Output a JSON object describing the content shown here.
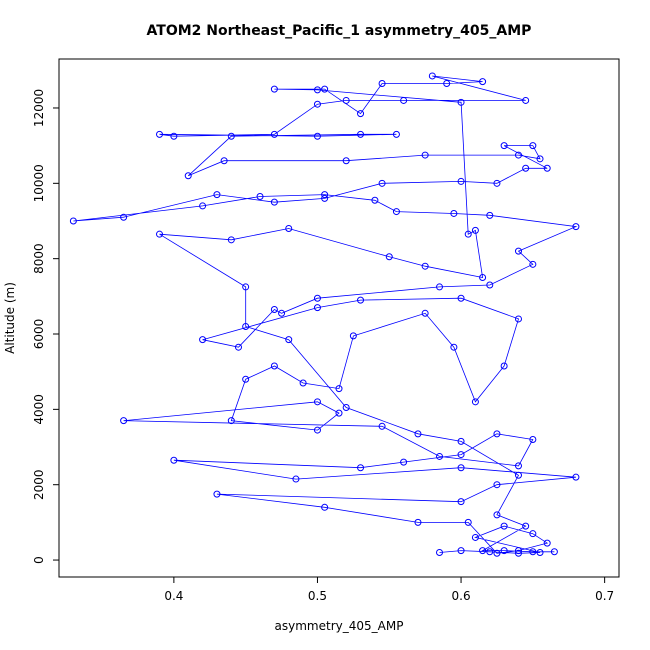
{
  "chart_data": {
    "type": "scatter",
    "title": "ATOM2 Northeast_Pacific_1 asymmetry_405_AMP",
    "xlabel": "asymmetry_405_AMP",
    "ylabel": "Altitude (m)",
    "xlim": [
      0.32,
      0.71
    ],
    "ylim": [
      -450,
      13300
    ],
    "xticks": [
      0.4,
      0.5,
      0.6,
      0.7
    ],
    "xtick_labels": [
      "0.4",
      "0.5",
      "0.6",
      "0.7"
    ],
    "yticks": [
      0,
      2000,
      4000,
      6000,
      8000,
      10000,
      12000
    ],
    "ytick_labels": [
      "0",
      "2000",
      "4000",
      "6000",
      "8000",
      "10000",
      "12000"
    ],
    "grid": false,
    "legend": "none",
    "series_color": "#0000ff",
    "marker": "open-circle",
    "connected": true,
    "points": [
      {
        "x": 0.585,
        "y": 200
      },
      {
        "x": 0.6,
        "y": 250
      },
      {
        "x": 0.62,
        "y": 220
      },
      {
        "x": 0.64,
        "y": 180
      },
      {
        "x": 0.655,
        "y": 200
      },
      {
        "x": 0.61,
        "y": 600
      },
      {
        "x": 0.63,
        "y": 900
      },
      {
        "x": 0.65,
        "y": 700
      },
      {
        "x": 0.66,
        "y": 450
      },
      {
        "x": 0.64,
        "y": 250
      },
      {
        "x": 0.625,
        "y": 180
      },
      {
        "x": 0.605,
        "y": 1000
      },
      {
        "x": 0.57,
        "y": 1000
      },
      {
        "x": 0.505,
        "y": 1400
      },
      {
        "x": 0.43,
        "y": 1750
      },
      {
        "x": 0.6,
        "y": 1550
      },
      {
        "x": 0.625,
        "y": 2000
      },
      {
        "x": 0.68,
        "y": 2200
      },
      {
        "x": 0.6,
        "y": 2450
      },
      {
        "x": 0.485,
        "y": 2150
      },
      {
        "x": 0.4,
        "y": 2650
      },
      {
        "x": 0.53,
        "y": 2450
      },
      {
        "x": 0.56,
        "y": 2600
      },
      {
        "x": 0.6,
        "y": 2800
      },
      {
        "x": 0.625,
        "y": 3350
      },
      {
        "x": 0.65,
        "y": 3200
      },
      {
        "x": 0.64,
        "y": 2500
      },
      {
        "x": 0.585,
        "y": 2750
      },
      {
        "x": 0.545,
        "y": 3550
      },
      {
        "x": 0.365,
        "y": 3700
      },
      {
        "x": 0.5,
        "y": 4200
      },
      {
        "x": 0.515,
        "y": 3900
      },
      {
        "x": 0.5,
        "y": 3450
      },
      {
        "x": 0.44,
        "y": 3700
      },
      {
        "x": 0.45,
        "y": 4800
      },
      {
        "x": 0.47,
        "y": 5150
      },
      {
        "x": 0.49,
        "y": 4700
      },
      {
        "x": 0.515,
        "y": 4550
      },
      {
        "x": 0.525,
        "y": 5950
      },
      {
        "x": 0.575,
        "y": 6550
      },
      {
        "x": 0.595,
        "y": 5650
      },
      {
        "x": 0.61,
        "y": 4200
      },
      {
        "x": 0.63,
        "y": 5150
      },
      {
        "x": 0.64,
        "y": 6400
      },
      {
        "x": 0.6,
        "y": 6950
      },
      {
        "x": 0.53,
        "y": 6900
      },
      {
        "x": 0.5,
        "y": 6700
      },
      {
        "x": 0.42,
        "y": 5850
      },
      {
        "x": 0.445,
        "y": 5650
      },
      {
        "x": 0.47,
        "y": 6650
      },
      {
        "x": 0.475,
        "y": 6550
      },
      {
        "x": 0.5,
        "y": 6950
      },
      {
        "x": 0.585,
        "y": 7250
      },
      {
        "x": 0.62,
        "y": 7300
      },
      {
        "x": 0.65,
        "y": 7850
      },
      {
        "x": 0.64,
        "y": 8200
      },
      {
        "x": 0.68,
        "y": 8850
      },
      {
        "x": 0.62,
        "y": 9150
      },
      {
        "x": 0.595,
        "y": 9200
      },
      {
        "x": 0.555,
        "y": 9250
      },
      {
        "x": 0.54,
        "y": 9550
      },
      {
        "x": 0.505,
        "y": 9700
      },
      {
        "x": 0.46,
        "y": 9650
      },
      {
        "x": 0.42,
        "y": 9400
      },
      {
        "x": 0.33,
        "y": 9000
      },
      {
        "x": 0.365,
        "y": 9100
      },
      {
        "x": 0.43,
        "y": 9700
      },
      {
        "x": 0.47,
        "y": 9500
      },
      {
        "x": 0.505,
        "y": 9600
      },
      {
        "x": 0.545,
        "y": 10000
      },
      {
        "x": 0.6,
        "y": 10050
      },
      {
        "x": 0.625,
        "y": 10000
      },
      {
        "x": 0.645,
        "y": 10400
      },
      {
        "x": 0.66,
        "y": 10400
      },
      {
        "x": 0.63,
        "y": 11000
      },
      {
        "x": 0.65,
        "y": 11000
      },
      {
        "x": 0.655,
        "y": 10650
      },
      {
        "x": 0.64,
        "y": 10750
      },
      {
        "x": 0.575,
        "y": 10750
      },
      {
        "x": 0.52,
        "y": 10600
      },
      {
        "x": 0.435,
        "y": 10600
      },
      {
        "x": 0.41,
        "y": 10200
      },
      {
        "x": 0.44,
        "y": 11250
      },
      {
        "x": 0.53,
        "y": 11300
      },
      {
        "x": 0.555,
        "y": 11300
      },
      {
        "x": 0.5,
        "y": 11250
      },
      {
        "x": 0.39,
        "y": 11300
      },
      {
        "x": 0.4,
        "y": 11250
      },
      {
        "x": 0.47,
        "y": 11300
      },
      {
        "x": 0.5,
        "y": 12100
      },
      {
        "x": 0.52,
        "y": 12200
      },
      {
        "x": 0.56,
        "y": 12200
      },
      {
        "x": 0.645,
        "y": 12200
      },
      {
        "x": 0.58,
        "y": 12850
      },
      {
        "x": 0.615,
        "y": 12700
      },
      {
        "x": 0.59,
        "y": 12650
      },
      {
        "x": 0.545,
        "y": 12650
      },
      {
        "x": 0.53,
        "y": 11850
      },
      {
        "x": 0.505,
        "y": 12500
      },
      {
        "x": 0.47,
        "y": 12500
      },
      {
        "x": 0.5,
        "y": 12480
      },
      {
        "x": 0.6,
        "y": 12150
      },
      {
        "x": 0.605,
        "y": 8650
      },
      {
        "x": 0.61,
        "y": 8750
      },
      {
        "x": 0.615,
        "y": 7500
      },
      {
        "x": 0.575,
        "y": 7800
      },
      {
        "x": 0.55,
        "y": 8050
      },
      {
        "x": 0.48,
        "y": 8800
      },
      {
        "x": 0.44,
        "y": 8500
      },
      {
        "x": 0.39,
        "y": 8650
      },
      {
        "x": 0.45,
        "y": 7250
      },
      {
        "x": 0.45,
        "y": 6200
      },
      {
        "x": 0.48,
        "y": 5850
      },
      {
        "x": 0.52,
        "y": 4050
      },
      {
        "x": 0.57,
        "y": 3350
      },
      {
        "x": 0.6,
        "y": 3150
      },
      {
        "x": 0.64,
        "y": 2250
      },
      {
        "x": 0.625,
        "y": 1200
      },
      {
        "x": 0.645,
        "y": 900
      },
      {
        "x": 0.615,
        "y": 250
      },
      {
        "x": 0.63,
        "y": 250
      },
      {
        "x": 0.65,
        "y": 220
      },
      {
        "x": 0.665,
        "y": 220
      }
    ]
  }
}
